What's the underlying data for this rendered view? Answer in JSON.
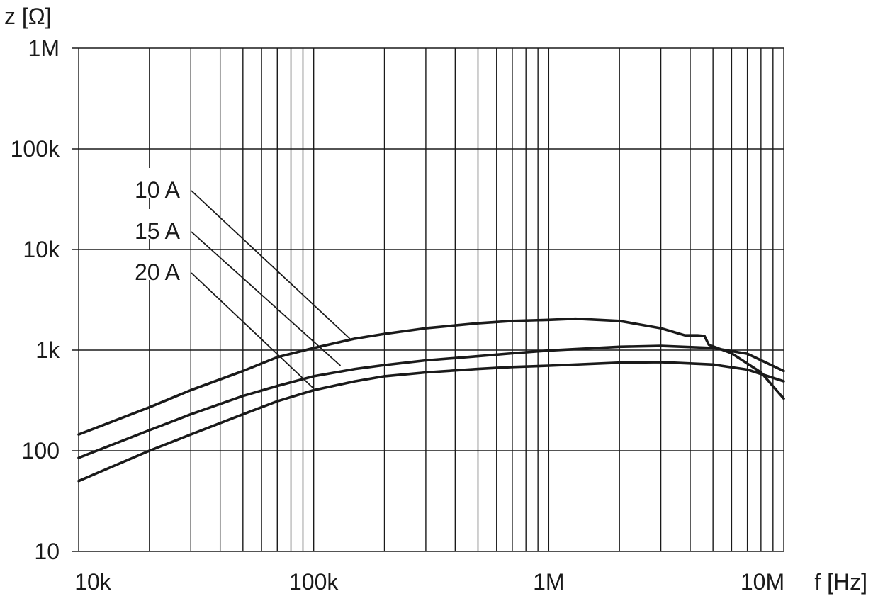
{
  "chart_data": {
    "type": "line",
    "xscale": "log",
    "yscale": "log",
    "xlim": [
      10000,
      10000000
    ],
    "ylim": [
      10,
      1000000
    ],
    "grid": true,
    "xlabel": "f [Hz]",
    "ylabel": "z [Ω]",
    "xticks": [
      {
        "value": 10000,
        "label": "10k"
      },
      {
        "value": 100000,
        "label": "100k"
      },
      {
        "value": 1000000,
        "label": "1M"
      },
      {
        "value": 10000000,
        "label": "10M"
      }
    ],
    "yticks": [
      {
        "value": 10,
        "label": "10"
      },
      {
        "value": 100,
        "label": "100"
      },
      {
        "value": 1000,
        "label": "1k"
      },
      {
        "value": 10000,
        "label": "10k"
      },
      {
        "value": 100000,
        "label": "100k"
      },
      {
        "value": 1000000,
        "label": "1M"
      }
    ],
    "series": [
      {
        "name": "10 A",
        "points": [
          [
            10000,
            145
          ],
          [
            20000,
            270
          ],
          [
            30000,
            400
          ],
          [
            50000,
            620
          ],
          [
            70000,
            850
          ],
          [
            100000,
            1050
          ],
          [
            150000,
            1300
          ],
          [
            200000,
            1450
          ],
          [
            300000,
            1650
          ],
          [
            500000,
            1850
          ],
          [
            700000,
            1950
          ],
          [
            1000000,
            2000
          ],
          [
            1300000,
            2050
          ],
          [
            2000000,
            1950
          ],
          [
            3000000,
            1650
          ],
          [
            3800000,
            1400
          ],
          [
            4300000,
            1400
          ],
          [
            4600000,
            1380
          ],
          [
            4800000,
            1130
          ],
          [
            6000000,
            930
          ],
          [
            8000000,
            600
          ],
          [
            10000000,
            330
          ]
        ]
      },
      {
        "name": "15 A",
        "points": [
          [
            10000,
            85
          ],
          [
            20000,
            160
          ],
          [
            30000,
            230
          ],
          [
            50000,
            350
          ],
          [
            70000,
            440
          ],
          [
            100000,
            550
          ],
          [
            150000,
            650
          ],
          [
            200000,
            710
          ],
          [
            300000,
            790
          ],
          [
            500000,
            870
          ],
          [
            700000,
            930
          ],
          [
            1000000,
            990
          ],
          [
            2000000,
            1080
          ],
          [
            3000000,
            1100
          ],
          [
            5000000,
            1050
          ],
          [
            7000000,
            920
          ],
          [
            10000000,
            620
          ]
        ]
      },
      {
        "name": "20 A",
        "points": [
          [
            10000,
            50
          ],
          [
            20000,
            100
          ],
          [
            30000,
            145
          ],
          [
            50000,
            230
          ],
          [
            70000,
            310
          ],
          [
            100000,
            400
          ],
          [
            150000,
            490
          ],
          [
            200000,
            550
          ],
          [
            300000,
            600
          ],
          [
            500000,
            650
          ],
          [
            700000,
            680
          ],
          [
            1000000,
            700
          ],
          [
            2000000,
            750
          ],
          [
            3000000,
            760
          ],
          [
            5000000,
            720
          ],
          [
            7000000,
            640
          ],
          [
            10000000,
            490
          ]
        ]
      }
    ],
    "annotations": [
      {
        "series": "10 A",
        "text": "10 A",
        "target": [
          145000,
          1250
        ]
      },
      {
        "series": "15 A",
        "text": "15 A",
        "target": [
          130000,
          700
        ]
      },
      {
        "series": "20 A",
        "text": "20 A",
        "target": [
          100000,
          415
        ]
      }
    ]
  }
}
